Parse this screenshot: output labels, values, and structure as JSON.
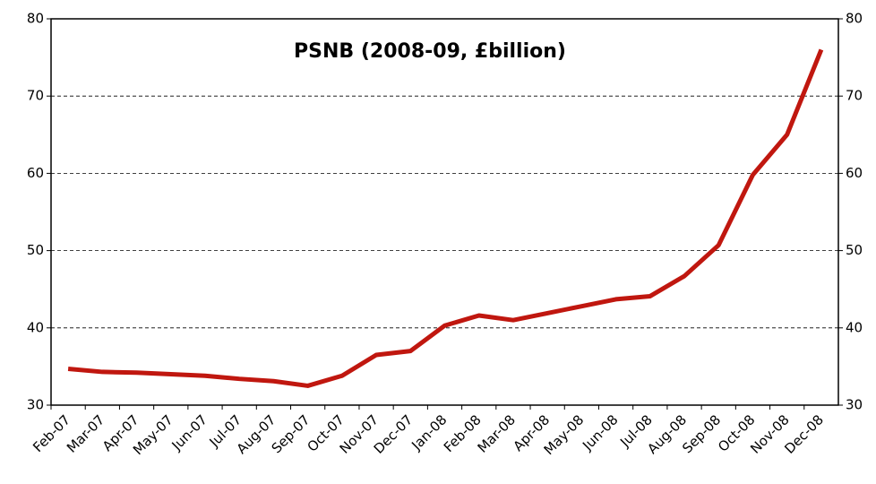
{
  "chart_data": {
    "type": "line",
    "title": "PSNB (2008-09, £billion)",
    "categories": [
      "Feb-07",
      "Mar-07",
      "Apr-07",
      "May-07",
      "Jun-07",
      "Jul-07",
      "Aug-07",
      "Sep-07",
      "Oct-07",
      "Nov-07",
      "Dec-07",
      "Jan-08",
      "Feb-08",
      "Mar-08",
      "Apr-08",
      "May-08",
      "Jun-08",
      "Jul-08",
      "Aug-08",
      "Sep-08",
      "Oct-08",
      "Nov-08",
      "Dec-08"
    ],
    "series": [
      {
        "color": "#c0170f",
        "values": [
          34.7,
          34.3,
          34.2,
          34.0,
          33.8,
          33.4,
          33.1,
          32.5,
          33.8,
          36.5,
          37.0,
          40.3,
          41.6,
          41.0,
          41.9,
          42.8,
          43.7,
          44.1,
          46.7,
          50.7,
          59.8,
          65.0,
          76.0
        ]
      }
    ],
    "ylim": [
      30,
      80
    ],
    "yticks": [
      30,
      40,
      50,
      60,
      70,
      80
    ],
    "grid": true
  }
}
